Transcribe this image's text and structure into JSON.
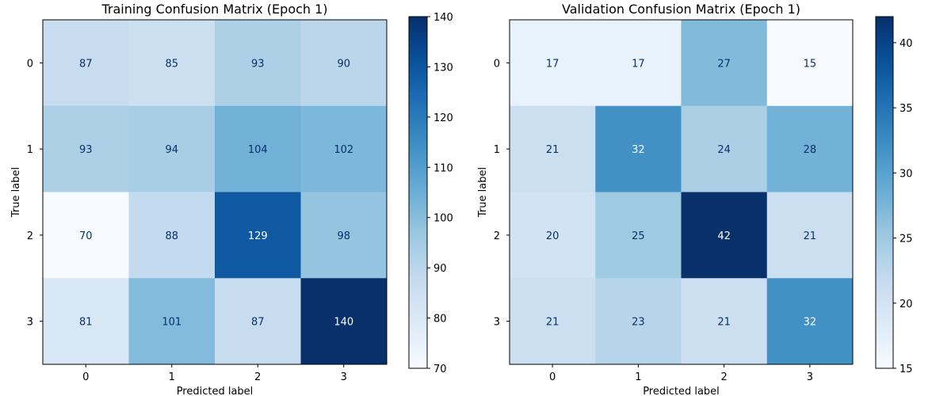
{
  "chart_data": [
    {
      "type": "heatmap",
      "title": "Training Confusion Matrix (Epoch 1)",
      "xlabel": "Predicted label",
      "ylabel": "True label",
      "x_categories": [
        "0",
        "1",
        "2",
        "3"
      ],
      "y_categories": [
        "0",
        "1",
        "2",
        "3"
      ],
      "values": [
        [
          87,
          85,
          93,
          90
        ],
        [
          93,
          94,
          104,
          102
        ],
        [
          70,
          88,
          129,
          98
        ],
        [
          81,
          101,
          87,
          140
        ]
      ],
      "colorbar": {
        "colormap": "Blues",
        "range": [
          70,
          140
        ],
        "ticks": [
          70,
          80,
          90,
          100,
          110,
          120,
          130,
          140
        ]
      }
    },
    {
      "type": "heatmap",
      "title": "Validation Confusion Matrix (Epoch 1)",
      "xlabel": "Predicted label",
      "ylabel": "True label",
      "x_categories": [
        "0",
        "1",
        "2",
        "3"
      ],
      "y_categories": [
        "0",
        "1",
        "2",
        "3"
      ],
      "values": [
        [
          17,
          17,
          27,
          15
        ],
        [
          21,
          32,
          24,
          28
        ],
        [
          20,
          25,
          42,
          21
        ],
        [
          21,
          23,
          21,
          32
        ]
      ],
      "colorbar": {
        "colormap": "Blues",
        "range": [
          15,
          42
        ],
        "ticks": [
          15,
          20,
          25,
          30,
          35,
          40
        ]
      }
    }
  ]
}
